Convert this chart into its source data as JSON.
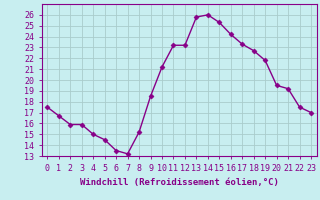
{
  "x": [
    0,
    1,
    2,
    3,
    4,
    5,
    6,
    7,
    8,
    9,
    10,
    11,
    12,
    13,
    14,
    15,
    16,
    17,
    18,
    19,
    20,
    21,
    22,
    23
  ],
  "y": [
    17.5,
    16.7,
    15.9,
    15.9,
    15.0,
    14.5,
    13.5,
    13.2,
    15.2,
    18.5,
    21.2,
    23.2,
    23.2,
    25.8,
    26.0,
    25.3,
    24.2,
    23.3,
    22.7,
    21.8,
    19.5,
    19.2,
    17.5,
    17.0
  ],
  "line_color": "#880088",
  "marker": "D",
  "markersize": 2.5,
  "linewidth": 1.0,
  "bg_color": "#c8eef0",
  "grid_color": "#aacccc",
  "xlabel": "Windchill (Refroidissement éolien,°C)",
  "xlim": [
    -0.5,
    23.5
  ],
  "ylim": [
    13,
    27
  ],
  "yticks": [
    13,
    14,
    15,
    16,
    17,
    18,
    19,
    20,
    21,
    22,
    23,
    24,
    25,
    26
  ],
  "xticks": [
    0,
    1,
    2,
    3,
    4,
    5,
    6,
    7,
    8,
    9,
    10,
    11,
    12,
    13,
    14,
    15,
    16,
    17,
    18,
    19,
    20,
    21,
    22,
    23
  ],
  "xtick_labels": [
    "0",
    "1",
    "2",
    "3",
    "4",
    "5",
    "6",
    "7",
    "8",
    "9",
    "10",
    "11",
    "12",
    "13",
    "14",
    "15",
    "16",
    "17",
    "18",
    "19",
    "20",
    "21",
    "22",
    "23"
  ],
  "xlabel_fontsize": 6.5,
  "tick_fontsize": 6.0,
  "text_color": "#880088"
}
